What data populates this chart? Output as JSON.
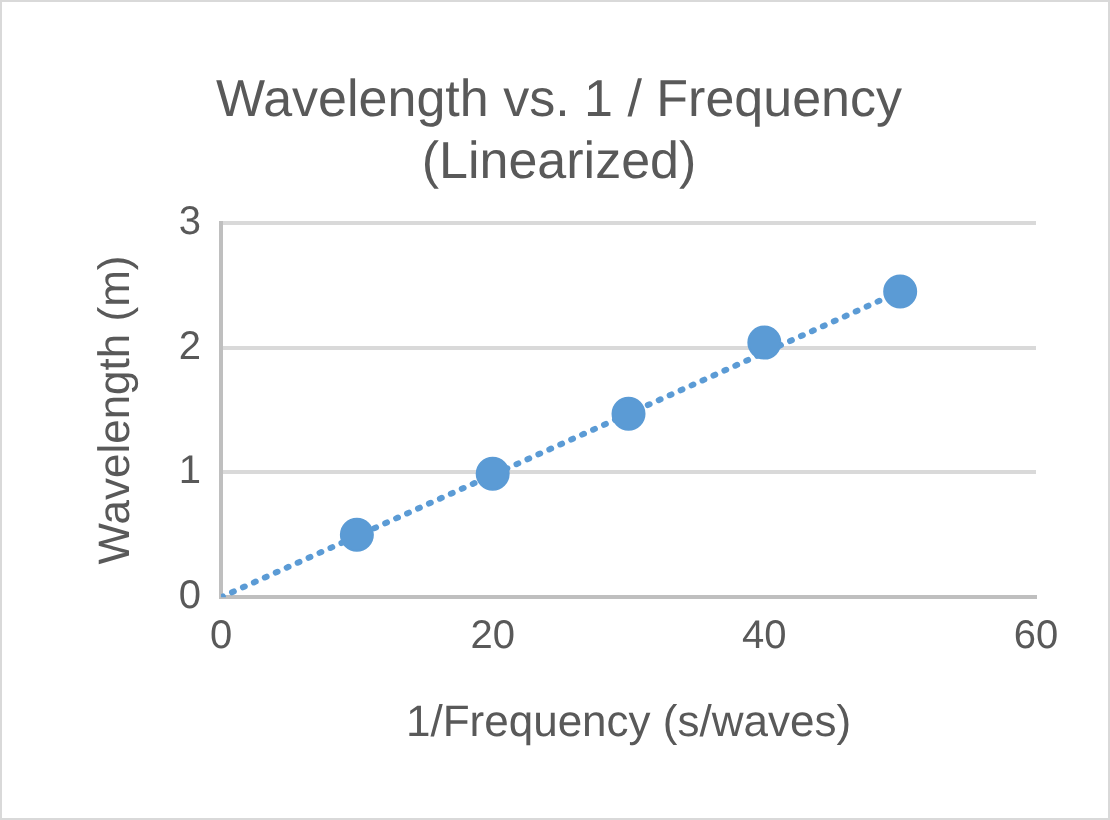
{
  "chart_data": {
    "type": "scatter",
    "title": [
      "Wavelength vs. 1 / Frequency",
      "(Linearized)"
    ],
    "xlabel": "1/Frequency (s/waves)",
    "ylabel": "Wavelength (m)",
    "x": [
      10,
      20,
      30,
      40,
      50
    ],
    "series": [
      {
        "color": "#5b9bd5",
        "values": [
          0.5,
          0.99,
          1.47,
          2.04,
          2.45
        ],
        "marker": "circle"
      },
      {
        "type": "line",
        "color": "#5b9bd5",
        "x": [
          0,
          50
        ],
        "values": [
          0,
          2.45
        ],
        "line_style": "dotted",
        "marker": "none"
      }
    ],
    "xlim": [
      0,
      60
    ],
    "xticks": [
      0,
      20,
      40,
      60
    ],
    "ylim": [
      0,
      3
    ],
    "yticks": [
      0,
      1,
      2,
      3
    ],
    "grid": "y",
    "legend": false
  }
}
